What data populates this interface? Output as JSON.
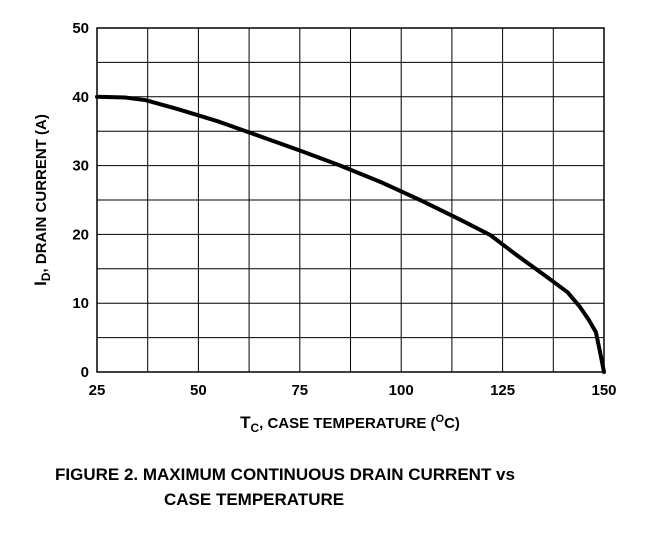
{
  "chart_data": {
    "type": "line",
    "title": "",
    "xlabel": {
      "symbol": "T",
      "subscript": "C",
      "text": ", CASE TEMPERATURE (",
      "superscript": "O",
      "unit": "C)"
    },
    "ylabel": {
      "symbol": "I",
      "subscript": "D",
      "text": ", DRAIN CURRENT (A)"
    },
    "xlim": [
      25,
      150
    ],
    "ylim": [
      0,
      50
    ],
    "x_ticks": [
      "25",
      "50",
      "75",
      "100",
      "125",
      "150"
    ],
    "y_ticks": [
      "0",
      "10",
      "20",
      "30",
      "40",
      "50"
    ],
    "grid": true,
    "series": [
      {
        "x": [
          25,
          32,
          37,
          45,
          55,
          65,
          75,
          85,
          95,
          105,
          115,
          122,
          128,
          135,
          141,
          144,
          146,
          148,
          149,
          150
        ],
        "y": [
          40,
          39.9,
          39.5,
          38.2,
          36.4,
          34.3,
          32.2,
          30,
          27.6,
          24.9,
          22,
          19.9,
          17.2,
          14.2,
          11.6,
          9.5,
          7.8,
          5.8,
          3,
          0
        ]
      }
    ]
  },
  "caption": {
    "line1": "FIGURE 2.  MAXIMUM CONTINUOUS DRAIN CURRENT vs",
    "line2": "CASE TEMPERATURE"
  }
}
